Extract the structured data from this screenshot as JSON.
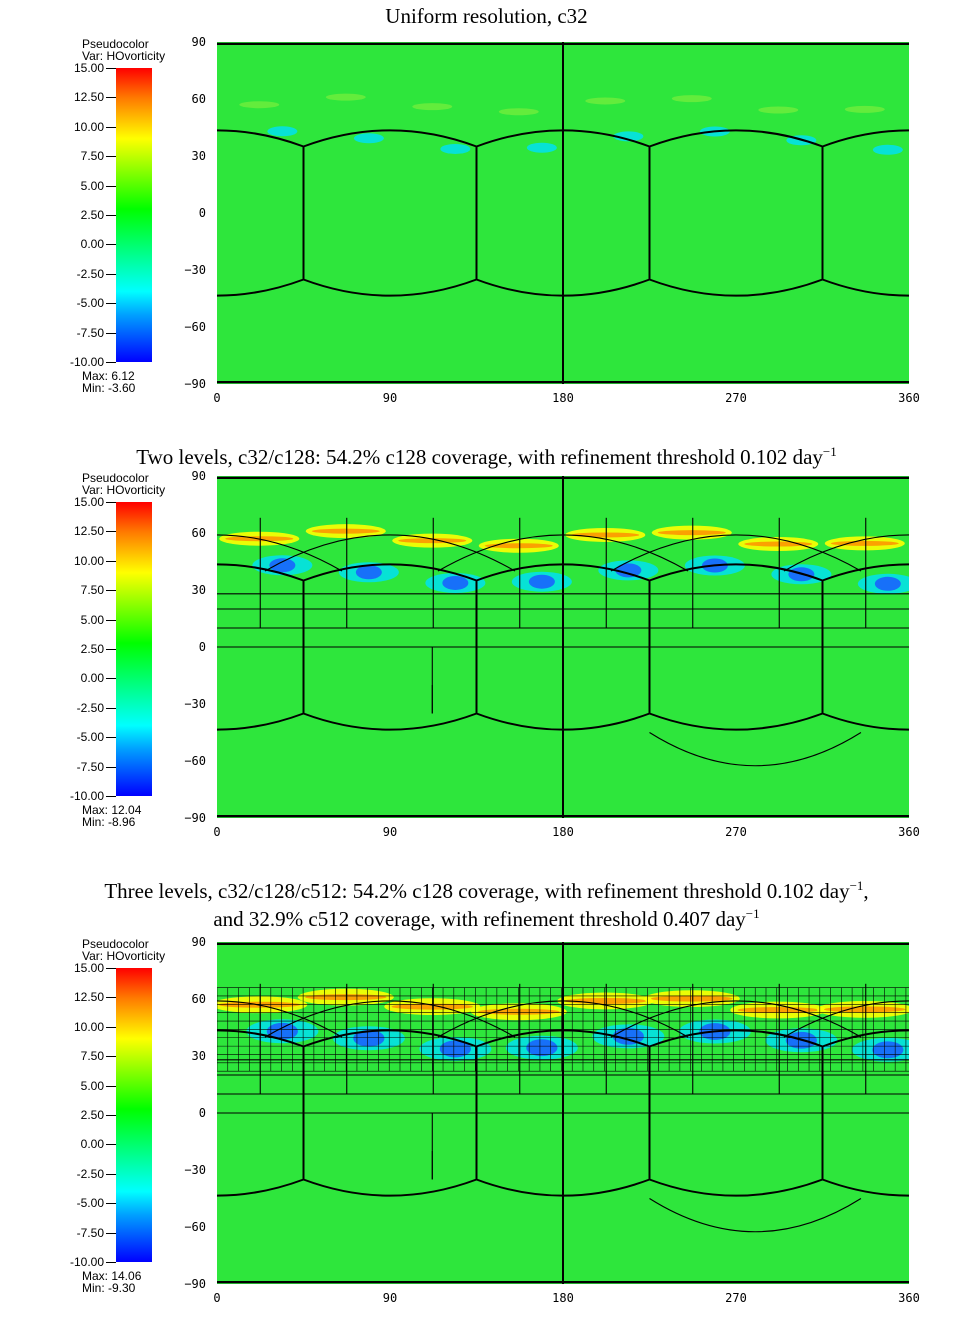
{
  "chart_data": [
    {
      "type": "heatmap",
      "title": "Uniform resolution, c32",
      "title_suffix": "",
      "legend": {
        "heading": "Pseudocolor",
        "var": "Var: HOvorticity",
        "ticks": [
          "15.00",
          "12.50",
          "10.00",
          "7.50",
          "5.00",
          "2.50",
          "0.00",
          "-2.50",
          "-5.00",
          "-7.50",
          "-10.00"
        ],
        "max": "Max:  6.12",
        "min": "Min: -3.60"
      },
      "xticks": [
        "0",
        "90",
        "180",
        "270",
        "360"
      ],
      "yticks": [
        "90",
        "60",
        "30",
        "0",
        "−30",
        "−60",
        "−90"
      ],
      "xlim": [
        0,
        360
      ],
      "ylim": [
        -90,
        90
      ],
      "refinement_levels": 1
    },
    {
      "type": "heatmap",
      "title": "Two levels, c32/c128: 54.2% c128 coverage, with refinement threshold 0.102 day",
      "title_sup": "−1",
      "title_suffix": "",
      "legend": {
        "heading": "Pseudocolor",
        "var": "Var: HOvorticity",
        "ticks": [
          "15.00",
          "12.50",
          "10.00",
          "7.50",
          "5.00",
          "2.50",
          "0.00",
          "-2.50",
          "-5.00",
          "-7.50",
          "-10.00"
        ],
        "max": "Max:  12.04",
        "min": "Min: -8.96"
      },
      "xticks": [
        "0",
        "90",
        "180",
        "270",
        "360"
      ],
      "yticks": [
        "90",
        "60",
        "30",
        "0",
        "−30",
        "−60",
        "−90"
      ],
      "xlim": [
        0,
        360
      ],
      "ylim": [
        -90,
        90
      ],
      "refinement_levels": 2
    },
    {
      "type": "heatmap",
      "title": "Three levels, c32/c128/c512: 54.2% c128 coverage, with refinement threshold 0.102 day",
      "title_sup": "−1",
      "title_suffix": ",",
      "title_line2": "and 32.9% c512 coverage, with refinement threshold 0.407 day",
      "title_line2_sup": "−1",
      "legend": {
        "heading": "Pseudocolor",
        "var": "Var: HOvorticity",
        "ticks": [
          "15.00",
          "12.50",
          "10.00",
          "7.50",
          "5.00",
          "2.50",
          "0.00",
          "-2.50",
          "-5.00",
          "-7.50",
          "-10.00"
        ],
        "max": "Max:  14.06",
        "min": "Min: -9.30"
      },
      "xticks": [
        "0",
        "90",
        "180",
        "270",
        "360"
      ],
      "yticks": [
        "90",
        "60",
        "30",
        "0",
        "−30",
        "−60",
        "−90"
      ],
      "xlim": [
        0,
        360
      ],
      "ylim": [
        -90,
        90
      ],
      "refinement_levels": 3
    }
  ],
  "colors": {
    "background_field": "#2ee63c",
    "positive_band": "#ffff00",
    "negative_band": "#00e0f0",
    "strong_negative": "#1a5cff",
    "grid": "#000000"
  }
}
